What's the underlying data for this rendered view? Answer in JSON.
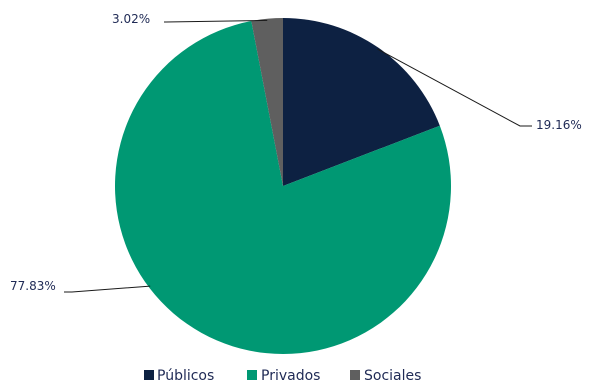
{
  "chart_data": {
    "type": "pie",
    "title": "",
    "slices": [
      {
        "label": "Públicos",
        "value": 19.16,
        "display": "19.16%",
        "color": "#0d2142"
      },
      {
        "label": "Privados",
        "value": 77.83,
        "display": "77.83%",
        "color": "#009873"
      },
      {
        "label": "Sociales",
        "value": 3.02,
        "display": "3.02%",
        "color": "#5f5f5f"
      }
    ],
    "start": "12 o'clock",
    "direction": "clockwise",
    "legend_position": "bottom"
  }
}
